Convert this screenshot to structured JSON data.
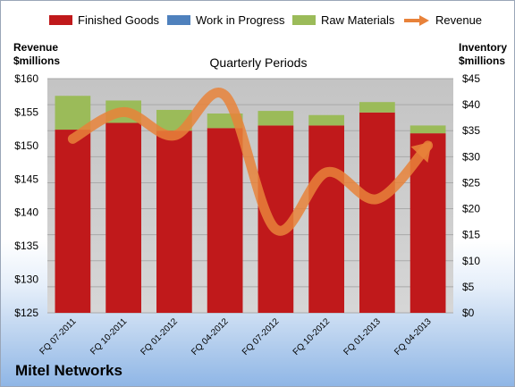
{
  "chart_data": {
    "type": "bar",
    "title": "Quarterly Periods",
    "company": "Mitel Networks",
    "left_axis_title": [
      "Revenue",
      "$millions"
    ],
    "right_axis_title": [
      "Inventory",
      "$millions"
    ],
    "categories": [
      "FQ 07-2011",
      "FQ 10-2011",
      "FQ 01-2012",
      "FQ 04-2012",
      "FQ 07-2012",
      "FQ 10-2012",
      "FQ 01-2013",
      "FQ 04-2013"
    ],
    "stacked": true,
    "left_axis": {
      "min": 125,
      "max": 160,
      "step": 5,
      "tick_labels": [
        "$125",
        "$130",
        "$135",
        "$140",
        "$145",
        "$150",
        "$155",
        "$160"
      ]
    },
    "right_axis": {
      "min": 0,
      "max": 45,
      "step": 5,
      "tick_labels": [
        "$0",
        "$5",
        "$10",
        "$15",
        "$20",
        "$25",
        "$30",
        "$35",
        "$40",
        "$45"
      ]
    },
    "series": [
      {
        "name": "Finished Goods",
        "axis": "right",
        "type": "bar",
        "color": "#c0191b",
        "values": [
          35.2,
          36.5,
          35.0,
          35.5,
          36.0,
          36.0,
          38.5,
          34.5
        ]
      },
      {
        "name": "Work in Progress",
        "axis": "right",
        "type": "bar",
        "color": "#4f81bd",
        "values": [
          0.0,
          0.0,
          0.0,
          0.0,
          0.0,
          0.0,
          0.0,
          0.0
        ]
      },
      {
        "name": "Raw Materials",
        "axis": "right",
        "type": "bar",
        "color": "#9bbb59",
        "values": [
          6.5,
          4.3,
          4.0,
          2.8,
          2.8,
          2.0,
          2.0,
          1.5
        ]
      },
      {
        "name": "Revenue",
        "axis": "left",
        "type": "line",
        "color": "#e8823a",
        "values": [
          151.0,
          155.0,
          151.5,
          157.5,
          137.5,
          146.0,
          142.0,
          150.0
        ]
      }
    ],
    "grid": true,
    "legend": "top"
  }
}
